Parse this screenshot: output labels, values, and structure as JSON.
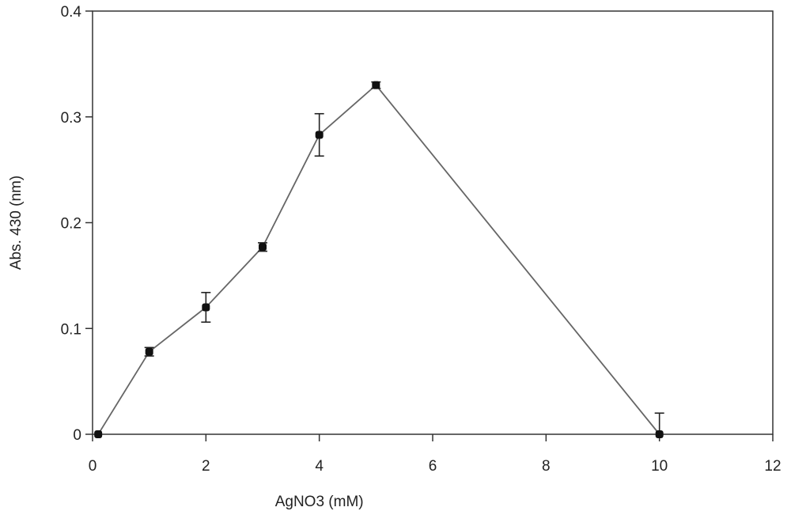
{
  "chart_data": {
    "type": "line",
    "title": "",
    "xlabel": "AgNO3 (mM)",
    "ylabel": "Abs. 430 (nm)",
    "xlim": [
      0,
      12
    ],
    "ylim": [
      0,
      0.4
    ],
    "x_ticks": [
      0,
      2,
      4,
      6,
      8,
      10,
      12
    ],
    "y_ticks": [
      0,
      0.1,
      0.2,
      0.3,
      0.4
    ],
    "x_tick_labels": [
      "0",
      "2",
      "4",
      "6",
      "8",
      "10",
      "12"
    ],
    "y_tick_labels": [
      "0",
      "0.1",
      "0.2",
      "0.3",
      "0.4"
    ],
    "grid": false,
    "legend": "none",
    "series": [
      {
        "x": [
          0.1,
          1,
          2,
          3,
          4,
          5,
          10
        ],
        "y": [
          0.0,
          0.078,
          0.12,
          0.177,
          0.283,
          0.33,
          0.0
        ],
        "error": [
          0.0,
          0.004,
          0.014,
          0.004,
          0.02,
          0.003,
          0.02
        ],
        "line_color": "#666666",
        "marker_color": "#111111"
      }
    ]
  }
}
